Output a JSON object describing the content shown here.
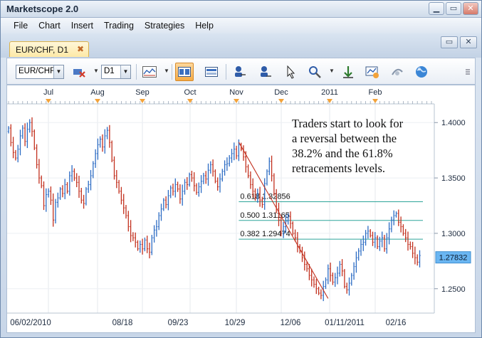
{
  "window": {
    "title": "Marketscope 2.0",
    "controls": [
      "▁",
      "▭",
      "✕"
    ]
  },
  "menu": [
    "File",
    "Chart",
    "Insert",
    "Trading",
    "Strategies",
    "Help"
  ],
  "doc_tab": {
    "label": "EUR/CHF, D1",
    "close": "✖"
  },
  "doc_controls": [
    "▭",
    "✕"
  ],
  "toolbar": {
    "instrument": "EUR/CHF",
    "timeframe": "D1",
    "icons": [
      "remove-instrument-icon",
      "bar-style-icon",
      "chart-tile-icon",
      "chart-tab-icon",
      "zoom-in-icon",
      "zoom-out-icon",
      "cursor-icon",
      "zoom-area-icon",
      "price-line-icon",
      "indicators-icon",
      "strategy-icon",
      "globe-icon",
      "more-icon"
    ],
    "accent": "#f5ab45"
  },
  "chart_data": {
    "type": "ohlc",
    "instrument": "EUR/CHF",
    "top_axis_labels": [
      "Jul",
      "Aug",
      "Sep",
      "Oct",
      "Nov",
      "Dec",
      "2011",
      "Feb"
    ],
    "bottom_axis_labels": [
      "06/02/2010",
      "08/18",
      "09/23",
      "10/29",
      "12/06",
      "01/11/2011",
      "02/16"
    ],
    "price_axis_labels": [
      "1.4000",
      "1.3500",
      "1.3000",
      "1.2500"
    ],
    "ylim": [
      1.228,
      1.422
    ],
    "current_price": "1.27832",
    "annotation": [
      "Traders start to look for",
      "a reversal between the",
      "38.2% and the 61.8%",
      "retracements levels."
    ],
    "fib_levels": [
      {
        "label": "0.618 1.32856",
        "value": 1.32856
      },
      {
        "label": "0.500 1.31165",
        "value": 1.31165
      },
      {
        "label": "0.382 1.29474",
        "value": 1.29474
      }
    ],
    "swing": {
      "high_index": 98,
      "high_value": 1.3823,
      "low_index": 136,
      "low_value": 1.2412
    },
    "closes": [
      1.395,
      1.382,
      1.373,
      1.368,
      1.376,
      1.388,
      1.395,
      1.383,
      1.394,
      1.4,
      1.392,
      1.377,
      1.362,
      1.35,
      1.343,
      1.325,
      1.335,
      1.338,
      1.33,
      1.312,
      1.328,
      1.332,
      1.34,
      1.336,
      1.344,
      1.338,
      1.352,
      1.356,
      1.35,
      1.346,
      1.338,
      1.33,
      1.327,
      1.34,
      1.344,
      1.352,
      1.363,
      1.372,
      1.38,
      1.385,
      1.378,
      1.388,
      1.393,
      1.382,
      1.366,
      1.352,
      1.346,
      1.338,
      1.33,
      1.323,
      1.316,
      1.306,
      1.298,
      1.296,
      1.292,
      1.286,
      1.29,
      1.286,
      1.294,
      1.286,
      1.283,
      1.296,
      1.303,
      1.306,
      1.316,
      1.322,
      1.33,
      1.326,
      1.334,
      1.341,
      1.338,
      1.344,
      1.34,
      1.331,
      1.338,
      1.346,
      1.344,
      1.353,
      1.35,
      1.343,
      1.337,
      1.342,
      1.347,
      1.352,
      1.349,
      1.357,
      1.362,
      1.356,
      1.347,
      1.342,
      1.349,
      1.356,
      1.362,
      1.363,
      1.368,
      1.372,
      1.376,
      1.37,
      1.38,
      1.376,
      1.369,
      1.36,
      1.352,
      1.344,
      1.338,
      1.332,
      1.336,
      1.33,
      1.326,
      1.345,
      1.356,
      1.365,
      1.352,
      1.336,
      1.322,
      1.312,
      1.3,
      1.306,
      1.311,
      1.315,
      1.309,
      1.3,
      1.296,
      1.288,
      1.284,
      1.278,
      1.272,
      1.268,
      1.262,
      1.258,
      1.254,
      1.25,
      1.246,
      1.244,
      1.252,
      1.258,
      1.268,
      1.262,
      1.256,
      1.26,
      1.264,
      1.272,
      1.266,
      1.252,
      1.249,
      1.255,
      1.262,
      1.27,
      1.278,
      1.284,
      1.29,
      1.292,
      1.3,
      1.302,
      1.298,
      1.292,
      1.296,
      1.288,
      1.293,
      1.296,
      1.286,
      1.296,
      1.304,
      1.312,
      1.316,
      1.318,
      1.31,
      1.306,
      1.3,
      1.296,
      1.29,
      1.288,
      1.282,
      1.278,
      1.274,
      1.28
    ]
  }
}
